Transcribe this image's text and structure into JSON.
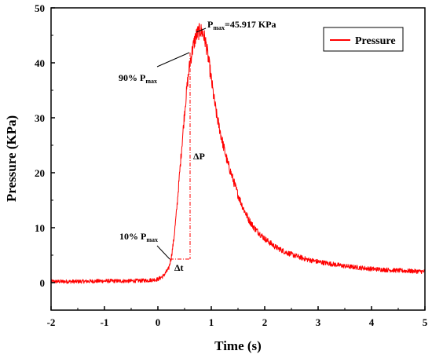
{
  "chart_data": {
    "type": "line",
    "title": "",
    "xlabel": "Time (s)",
    "ylabel": "Pressure (KPa)",
    "xlim": [
      -2,
      5
    ],
    "ylim": [
      -5,
      50
    ],
    "xticks": [
      "-2",
      "-1",
      "0",
      "1",
      "2",
      "3",
      "4",
      "5"
    ],
    "yticks": [
      "0",
      "10",
      "20",
      "30",
      "40",
      "50"
    ],
    "grid": false,
    "legend_position": "top-right",
    "series": [
      {
        "name": "Pressure",
        "color": "#ff0000",
        "x": [
          -2.0,
          -1.5,
          -1.0,
          -0.5,
          -0.2,
          0.0,
          0.1,
          0.2,
          0.25,
          0.3,
          0.35,
          0.4,
          0.45,
          0.5,
          0.55,
          0.6,
          0.65,
          0.7,
          0.75,
          0.8,
          0.85,
          0.9,
          0.95,
          1.0,
          1.05,
          1.1,
          1.2,
          1.3,
          1.4,
          1.5,
          1.6,
          1.7,
          1.8,
          2.0,
          2.2,
          2.4,
          2.6,
          2.8,
          3.0,
          3.5,
          4.0,
          4.5,
          5.0
        ],
        "y": [
          0.2,
          0.2,
          0.3,
          0.3,
          0.4,
          0.6,
          1.2,
          2.5,
          4.5,
          8.0,
          13.0,
          19.0,
          25.0,
          31.0,
          36.0,
          40.0,
          42.5,
          44.5,
          45.5,
          45.9,
          45.3,
          43.5,
          40.5,
          37.0,
          33.5,
          30.5,
          26.0,
          22.0,
          19.0,
          16.0,
          13.5,
          11.5,
          10.0,
          8.0,
          6.5,
          5.5,
          4.8,
          4.2,
          3.8,
          3.0,
          2.5,
          2.2,
          2.0
        ]
      }
    ],
    "annotations": {
      "pmax_main": "P",
      "pmax_sub": "max",
      "pmax_value": "=45.917 KPa",
      "p90_main": "90% P",
      "p90_sub": "max",
      "p10_main": "10% P",
      "p10_sub": "max",
      "delta_p": "ΔP",
      "delta_t": "Δt"
    }
  }
}
